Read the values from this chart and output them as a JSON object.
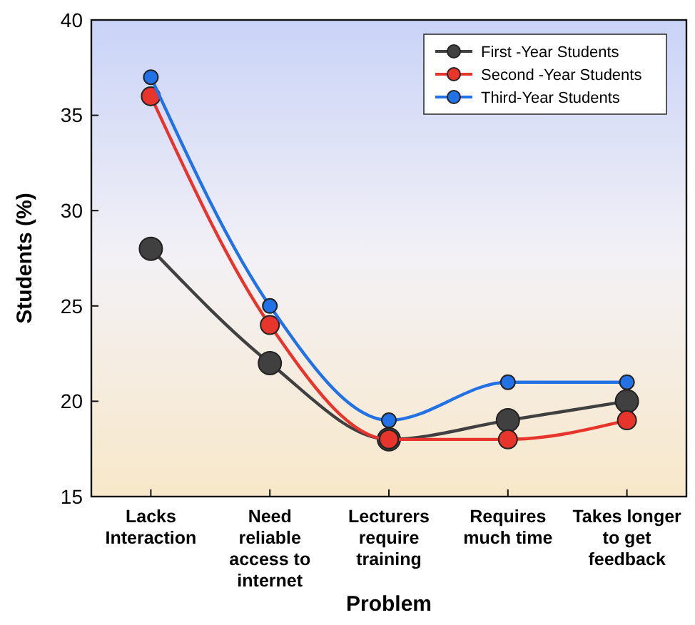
{
  "chart_data": {
    "type": "line",
    "xlabel": "Problem",
    "ylabel": "Students (%)",
    "categories": [
      "Lacks Interaction",
      "Need reliable access to internet",
      "Lecturers require training",
      "Requires much time",
      "Takes longer to get feedback"
    ],
    "series": [
      {
        "name": "First -Year Students",
        "color": "#404040",
        "values": [
          28,
          22,
          18,
          19,
          20
        ]
      },
      {
        "name": "Second -Year Students",
        "color": "#e8352c",
        "values": [
          36,
          24,
          18,
          18,
          19
        ]
      },
      {
        "name": "Third-Year Students",
        "color": "#2272e6",
        "values": [
          37,
          25,
          19,
          21,
          21
        ]
      }
    ],
    "ylim": [
      15,
      40
    ],
    "yticks": [
      15,
      20,
      25,
      30,
      35,
      40
    ],
    "grid": false,
    "legend": "top right",
    "marker": "circle",
    "line_style": "solid"
  }
}
